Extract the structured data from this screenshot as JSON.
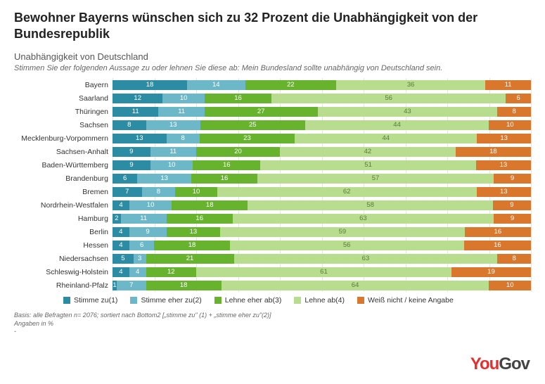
{
  "title": "Bewohner Bayerns wünschen sich zu 32 Prozent die Unabhängigkeit von der Bundesrepublik",
  "subtitle": "Unabhängigkeit von Deutschland",
  "question": "Stimmen Sie der folgenden Aussage zu oder lehnen Sie diese ab: Mein Bundesland sollte unabhängig von Deutschland sein.",
  "basis_line1": "Basis: alle Befragten n= 2076; sortiert nach Bottom2 [„stimme zu\" (1) + „stimme eher zu\"(2)]",
  "basis_line2": "Angaben in %",
  "logo_part1": "You",
  "logo_part2": "Gov",
  "colors": {
    "s1": "#2b8ca3",
    "s2": "#6cb8c9",
    "s3": "#67b32e",
    "s4": "#b8dd8f",
    "s5": "#d9772c",
    "grid": "#e5e5e5"
  },
  "legend": [
    {
      "label": "Stimme zu(1)",
      "color": "#2b8ca3"
    },
    {
      "label": "Stimme eher zu(2)",
      "color": "#6cb8c9"
    },
    {
      "label": "Lehne eher ab(3)",
      "color": "#67b32e"
    },
    {
      "label": "Lehne ab(4)",
      "color": "#b8dd8f"
    },
    {
      "label": "Weiß nicht / keine Angabe",
      "color": "#d9772c"
    }
  ],
  "chart": {
    "type": "stacked-bar-horizontal",
    "rows": [
      {
        "label": "Bayern",
        "v": [
          18,
          14,
          22,
          36,
          11
        ]
      },
      {
        "label": "Saarland",
        "v": [
          12,
          10,
          16,
          56,
          6
        ]
      },
      {
        "label": "Thüringen",
        "v": [
          11,
          11,
          27,
          43,
          8
        ]
      },
      {
        "label": "Sachsen",
        "v": [
          8,
          13,
          25,
          44,
          10
        ]
      },
      {
        "label": "Mecklenburg-Vorpommern",
        "v": [
          13,
          8,
          23,
          44,
          13
        ]
      },
      {
        "label": "Sachsen-Anhalt",
        "v": [
          9,
          11,
          20,
          42,
          18
        ]
      },
      {
        "label": "Baden-Württemberg",
        "v": [
          9,
          10,
          16,
          51,
          13
        ]
      },
      {
        "label": "Brandenburg",
        "v": [
          6,
          13,
          16,
          57,
          9
        ]
      },
      {
        "label": "Bremen",
        "v": [
          7,
          8,
          10,
          62,
          13
        ]
      },
      {
        "label": "Nordrhein-Westfalen",
        "v": [
          4,
          10,
          18,
          58,
          9
        ]
      },
      {
        "label": "Hamburg",
        "v": [
          2,
          11,
          16,
          63,
          9
        ]
      },
      {
        "label": "Berlin",
        "v": [
          4,
          9,
          13,
          59,
          16
        ]
      },
      {
        "label": "Hessen",
        "v": [
          4,
          6,
          18,
          56,
          16
        ]
      },
      {
        "label": "Niedersachsen",
        "v": [
          5,
          3,
          21,
          63,
          8
        ]
      },
      {
        "label": "Schleswig-Holstein",
        "v": [
          4,
          4,
          12,
          61,
          19
        ]
      },
      {
        "label": "Rheinland-Pfalz",
        "v": [
          1,
          7,
          18,
          64,
          10
        ]
      }
    ],
    "grid_positions": [
      0,
      10,
      20,
      30,
      40,
      50,
      60,
      70,
      80,
      90,
      100
    ]
  }
}
